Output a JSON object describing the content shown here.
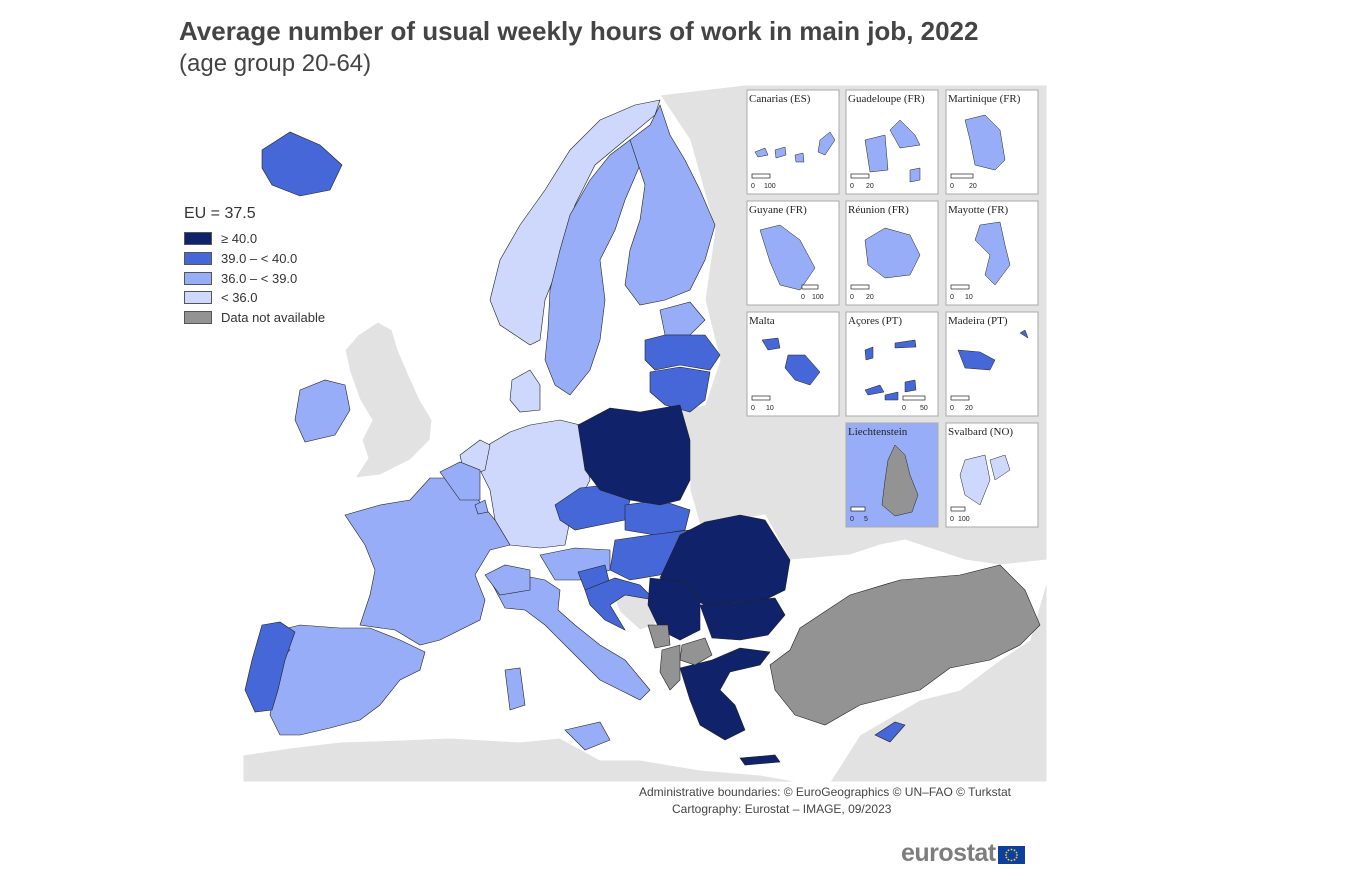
{
  "title": "Average number of usual weekly hours of work in main job, 2022",
  "subtitle": "(age group 20-64)",
  "legend": {
    "eu_label": "EU = 37.5",
    "classes": [
      {
        "label": "≥ 40.0",
        "color": "#10226a"
      },
      {
        "label": "39.0 – < 40.0",
        "color": "#4567d7"
      },
      {
        "label": "36.0 – < 39.0",
        "color": "#98adf7"
      },
      {
        "label": "< 36.0",
        "color": "#cdd8fc"
      },
      {
        "label": "Data not available",
        "color": "#939393"
      }
    ]
  },
  "colors": {
    "background_land": "#e2e2e2",
    "sea": "#ffffff",
    "borders": "#ffffff"
  },
  "insets": [
    {
      "name": "Canarias (ES)",
      "scale": [
        "0",
        "100"
      ],
      "class": "36.0 – < 39.0"
    },
    {
      "name": "Guadeloupe (FR)",
      "scale": [
        "0",
        "20"
      ],
      "class": "36.0 – < 39.0"
    },
    {
      "name": "Martinique (FR)",
      "scale": [
        "0",
        "20"
      ],
      "class": "36.0 – < 39.0"
    },
    {
      "name": "Guyane (FR)",
      "scale": [
        "0",
        "100"
      ],
      "class": "36.0 – < 39.0"
    },
    {
      "name": "Réunion (FR)",
      "scale": [
        "0",
        "20"
      ],
      "class": "36.0 – < 39.0"
    },
    {
      "name": "Mayotte (FR)",
      "scale": [
        "0",
        "10"
      ],
      "class": "36.0 – < 39.0"
    },
    {
      "name": "Malta",
      "scale": [
        "0",
        "10"
      ],
      "class": "39.0 – < 40.0"
    },
    {
      "name": "Açores (PT)",
      "scale": [
        "0",
        "50"
      ],
      "class": "39.0 – < 40.0"
    },
    {
      "name": "Madeira (PT)",
      "scale": [
        "0",
        "20"
      ],
      "class": "39.0 – < 40.0"
    },
    {
      "name": "Liechtenstein",
      "scale": [
        "0",
        "5"
      ],
      "class": "Data not available"
    },
    {
      "name": "Svalbard (NO)",
      "scale": [
        "0",
        "100"
      ],
      "class": "< 36.0"
    }
  ],
  "source": {
    "line1": "Administrative boundaries: © EuroGeographics © UN–FAO © Turkstat",
    "line2": "Cartography: Eurostat – IMAGE, 09/2023"
  },
  "logo": {
    "word": "eurostat",
    "flag_icon": "eu-flag-icon"
  }
}
